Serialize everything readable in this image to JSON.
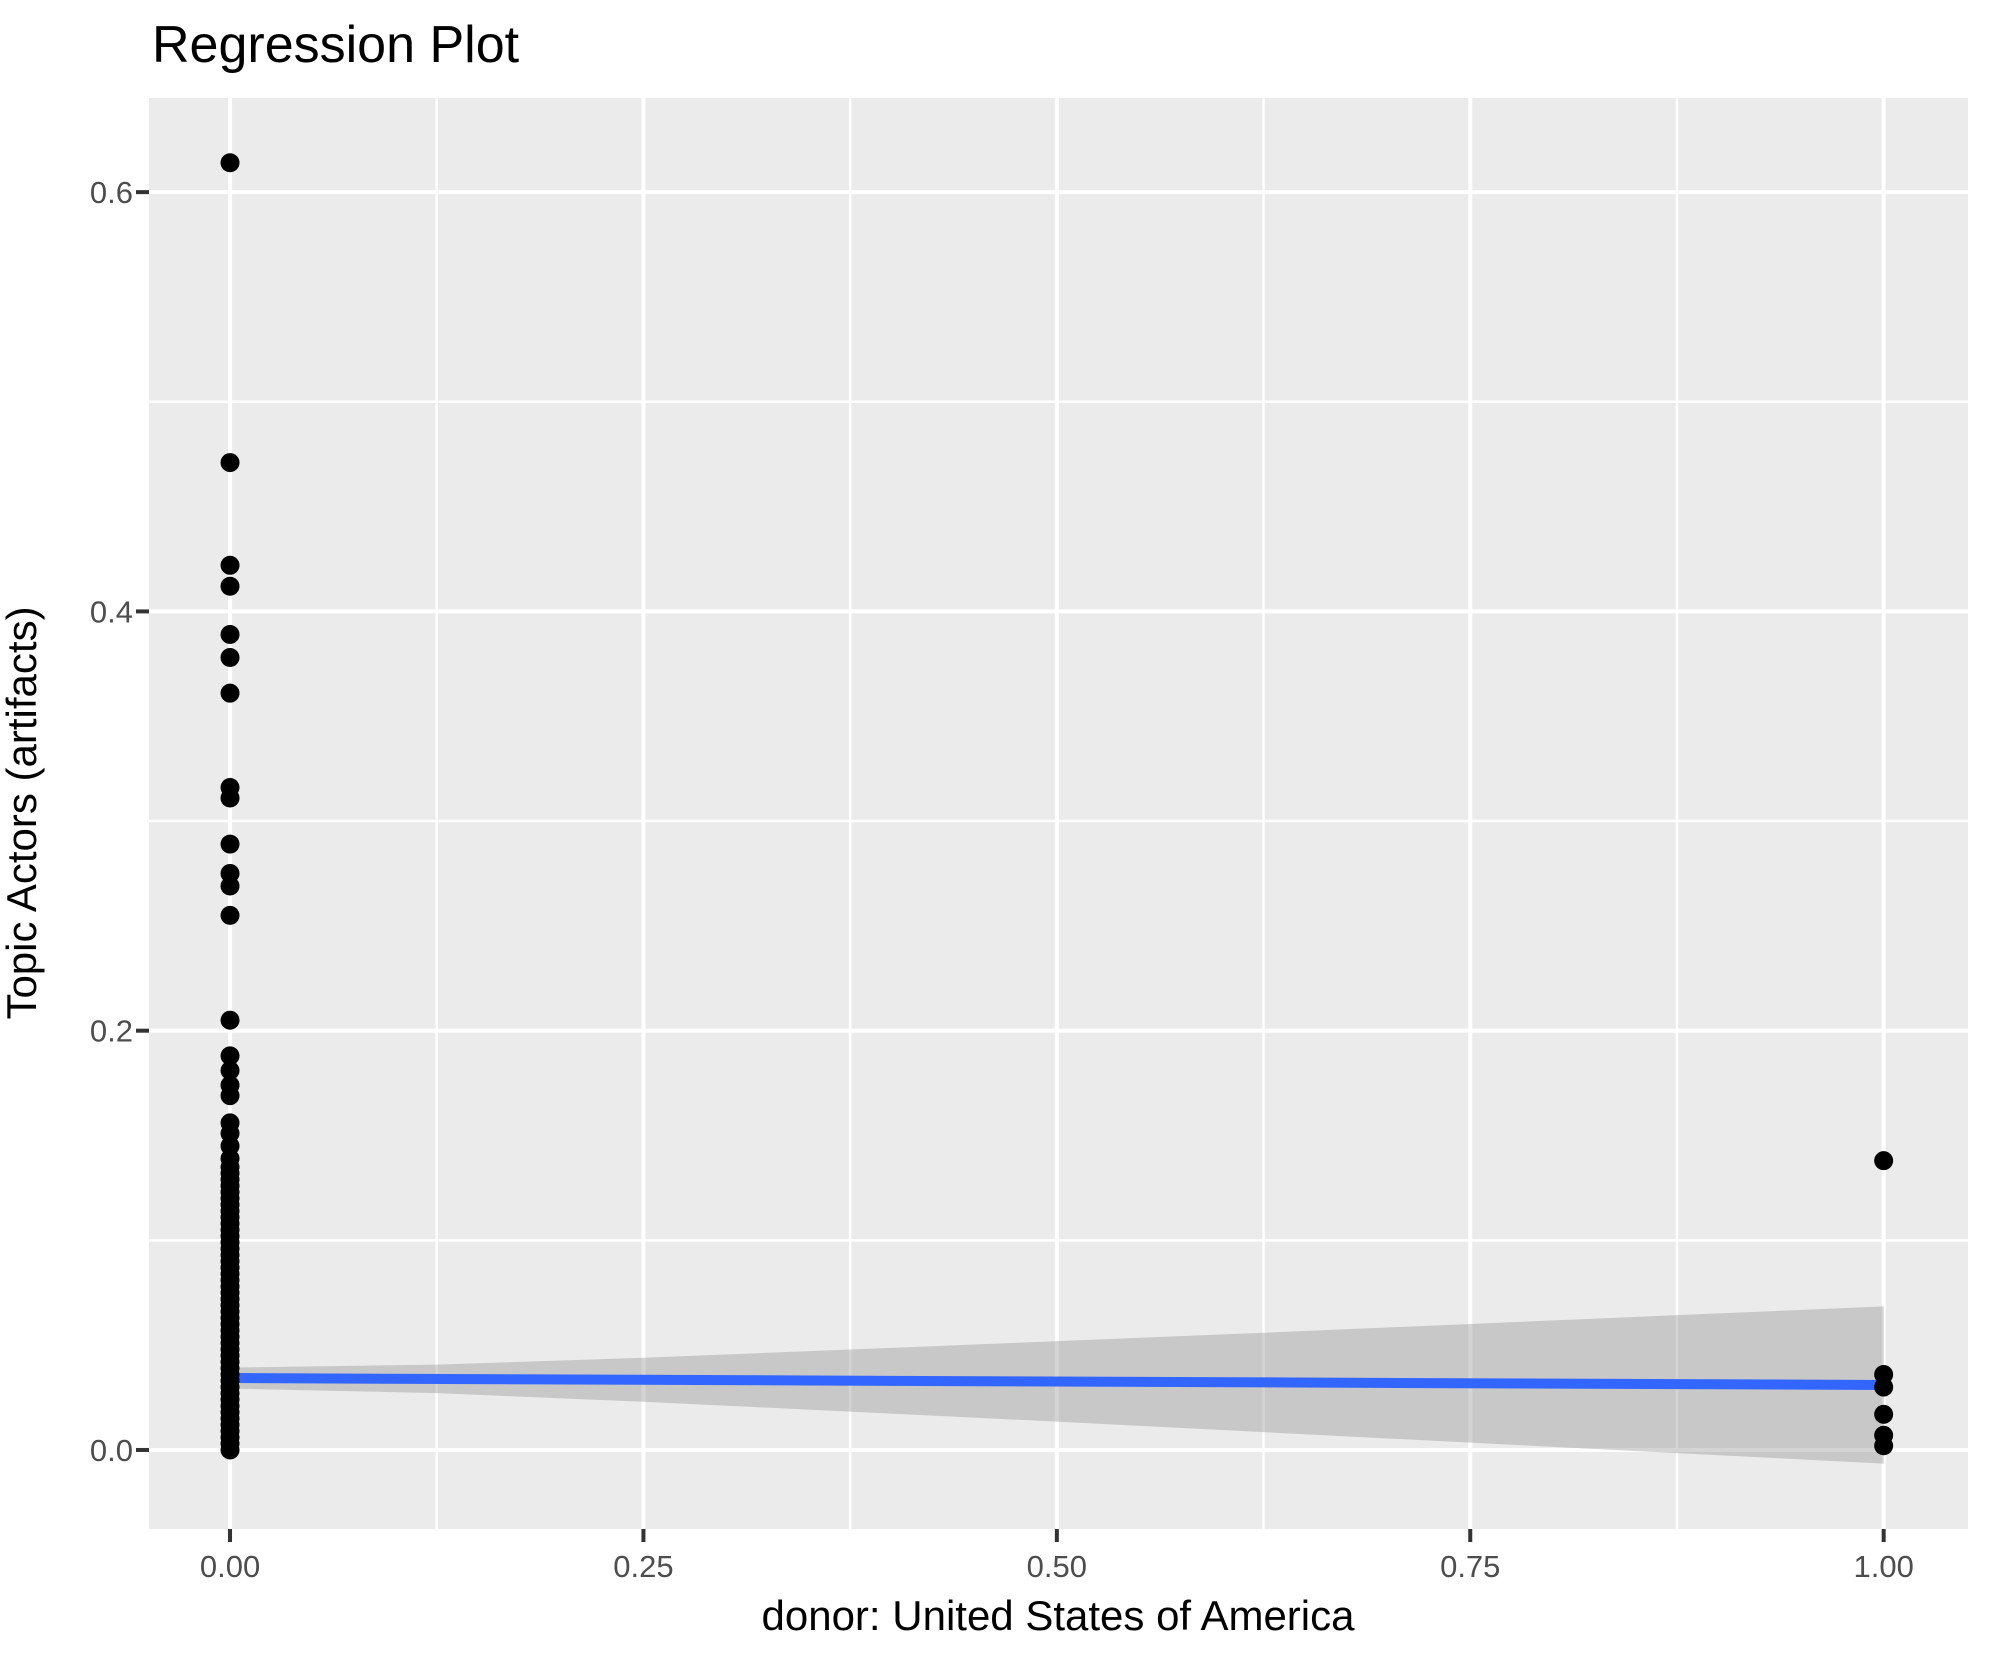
{
  "chart_data": {
    "type": "scatter",
    "title": "Regression Plot",
    "xlabel": "donor: United States of America",
    "ylabel": "Topic Actors (artifacts)",
    "xlim": [
      -0.049,
      1.051
    ],
    "ylim": [
      -0.0377,
      0.6449
    ],
    "grid": true,
    "legend": "none",
    "x_major_ticks": {
      "values": [
        0,
        0.25,
        0.5,
        0.75,
        1
      ],
      "labels": [
        "0.00",
        "0.25",
        "0.50",
        "0.75",
        "1.00"
      ]
    },
    "y_major_ticks": {
      "values": [
        0,
        0.2,
        0.4,
        0.6
      ],
      "labels": [
        "0.0",
        "0.2",
        "0.4",
        "0.6"
      ]
    },
    "x_minor_ticks": [
      0.125,
      0.375,
      0.625,
      0.875
    ],
    "y_minor_ticks": [
      0.1,
      0.3,
      0.5
    ],
    "points": [
      {
        "x": 0,
        "y": [
          0.614,
          0.471,
          0.422,
          0.412,
          0.389,
          0.378,
          0.361,
          0.316,
          0.311,
          0.289,
          0.275,
          0.269,
          0.255,
          0.205,
          0.188,
          0.181,
          0.174,
          0.169,
          0.156,
          0.151,
          0.145,
          0.139,
          0.135,
          0.132,
          0.129,
          0.126,
          0.123,
          0.12,
          0.117,
          0.114,
          0.111,
          0.108,
          0.105,
          0.102,
          0.099,
          0.096,
          0.093,
          0.09,
          0.087,
          0.084,
          0.081,
          0.078,
          0.075,
          0.072,
          0.069,
          0.066,
          0.063,
          0.06,
          0.057,
          0.054,
          0.051,
          0.048,
          0.045,
          0.042,
          0.039,
          0.036,
          0.033,
          0.03,
          0.027,
          0.024,
          0.021,
          0.018,
          0.015,
          0.012,
          0.009,
          0.006,
          0.003,
          0.0
        ]
      },
      {
        "x": 1,
        "y": [
          0.138,
          0.036,
          0.03,
          0.017,
          0.007,
          0.002
        ]
      }
    ],
    "regression_line": {
      "x": [
        0,
        1
      ],
      "y": [
        0.0343,
        0.031
      ],
      "color": "#3366FF",
      "width": 10
    },
    "confidence_band": {
      "x": [
        0,
        0.125,
        0.25,
        0.375,
        0.5,
        0.625,
        0.75,
        0.875,
        1
      ],
      "upper": [
        0.0393,
        0.0407,
        0.044,
        0.0479,
        0.0519,
        0.0559,
        0.0601,
        0.0643,
        0.0685
      ],
      "lower": [
        0.0293,
        0.0271,
        0.023,
        0.0183,
        0.0135,
        0.0085,
        0.0035,
        -0.0015,
        -0.0065
      ],
      "fill": "#999999",
      "opacity": 0.42
    },
    "style": {
      "panel_bg": "#EBEBEB",
      "grid_color": "#FFFFFF",
      "major_grid_width": 4,
      "minor_grid_width": 2.5,
      "point_color": "#000000",
      "point_radius": 9.5,
      "tick_color": "#333333",
      "tick_label_color": "#4D4D4D",
      "title_color": "#000000"
    }
  }
}
